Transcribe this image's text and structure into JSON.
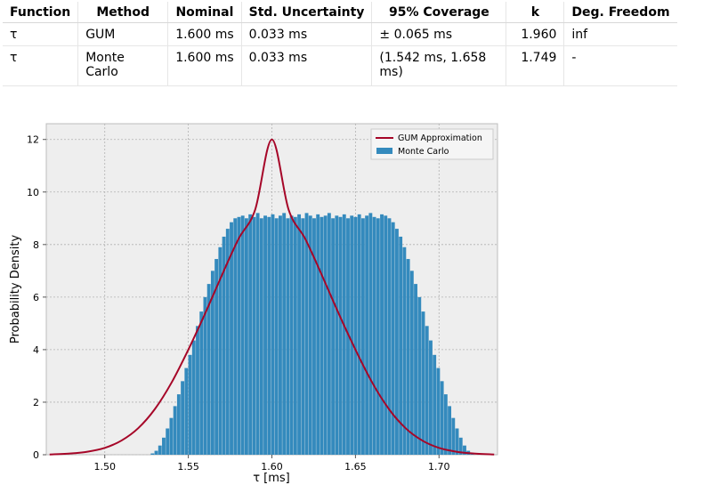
{
  "table": {
    "headers": [
      "Function",
      "Method",
      "Nominal",
      "Std. Uncertainty",
      "95% Coverage",
      "k",
      "Deg. Freedom"
    ],
    "rows": [
      [
        "τ",
        "GUM",
        "1.600 ms",
        "0.033 ms",
        "± 0.065 ms",
        "1.960",
        "inf"
      ],
      [
        "τ",
        "Monte Carlo",
        "1.600 ms",
        "0.033 ms",
        "(1.542 ms, 1.658 ms)",
        "1.749",
        "-"
      ]
    ]
  },
  "chart_data": {
    "type": "bar",
    "xlabel": "τ [ms]",
    "ylabel": "Probability Density",
    "xlim": [
      1.465,
      1.735
    ],
    "ylim": [
      0,
      12.6
    ],
    "xticks": [
      "1.50",
      "1.55",
      "1.60",
      "1.65",
      "1.70"
    ],
    "yticks": [
      "0",
      "2",
      "4",
      "6",
      "8",
      "10",
      "12"
    ],
    "grid": true,
    "legend": "top-right",
    "series": [
      {
        "name": "GUM Approximation",
        "kind": "line",
        "color": "#A60628",
        "x": [
          1.467,
          1.48,
          1.49,
          1.5,
          1.51,
          1.52,
          1.53,
          1.54,
          1.55,
          1.56,
          1.57,
          1.58,
          1.59,
          1.6,
          1.61,
          1.62,
          1.63,
          1.64,
          1.65,
          1.66,
          1.67,
          1.68,
          1.69,
          1.7,
          1.71,
          1.72,
          1.733
        ],
        "y": [
          0.01,
          0.05,
          0.12,
          0.26,
          0.54,
          1.01,
          1.74,
          2.75,
          4.0,
          5.37,
          6.82,
          8.21,
          9.33,
          12.0,
          9.33,
          8.21,
          6.82,
          5.37,
          4.0,
          2.75,
          1.74,
          1.01,
          0.54,
          0.26,
          0.12,
          0.05,
          0.01
        ]
      },
      {
        "name": "Monte Carlo",
        "kind": "histogram",
        "color": "#348ABD",
        "bin_start": 1.5275,
        "bin_width": 0.00225,
        "values": [
          0.05,
          0.15,
          0.35,
          0.65,
          1.0,
          1.4,
          1.85,
          2.3,
          2.8,
          3.3,
          3.8,
          4.35,
          4.9,
          5.45,
          6.0,
          6.5,
          7.0,
          7.45,
          7.9,
          8.3,
          8.6,
          8.85,
          9.0,
          9.05,
          9.1,
          9.0,
          9.15,
          9.05,
          9.2,
          9.0,
          9.1,
          9.05,
          9.15,
          9.0,
          9.1,
          9.2,
          9.0,
          9.1,
          9.05,
          9.15,
          9.0,
          9.2,
          9.1,
          9.0,
          9.15,
          9.05,
          9.1,
          9.2,
          9.0,
          9.1,
          9.05,
          9.15,
          9.0,
          9.1,
          9.05,
          9.15,
          9.0,
          9.1,
          9.2,
          9.05,
          9.0,
          9.15,
          9.1,
          9.0,
          8.85,
          8.6,
          8.3,
          7.9,
          7.45,
          7.0,
          6.5,
          6.0,
          5.45,
          4.9,
          4.35,
          3.8,
          3.3,
          2.8,
          2.3,
          1.85,
          1.4,
          1.0,
          0.65,
          0.35,
          0.15,
          0.05
        ]
      }
    ]
  }
}
